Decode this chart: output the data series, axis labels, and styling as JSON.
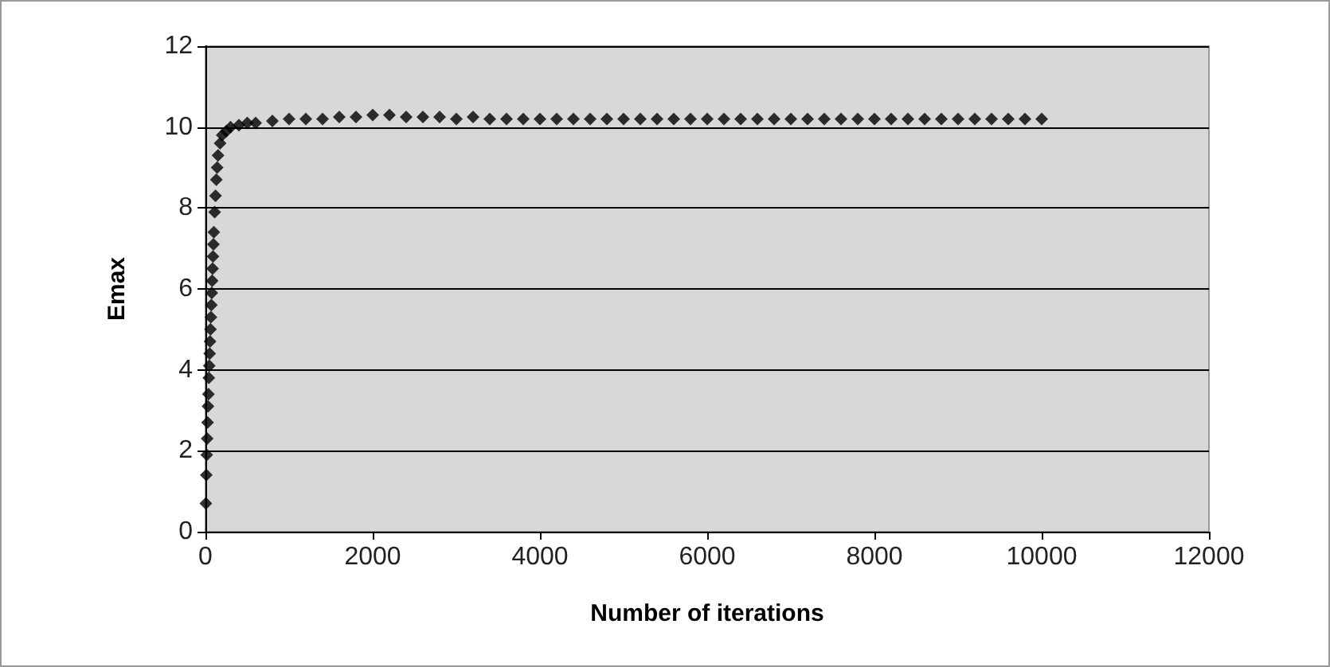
{
  "chart_data": {
    "type": "scatter",
    "xlabel": "Number of iterations",
    "ylabel": "Emax",
    "x": [
      5,
      10,
      15,
      20,
      25,
      30,
      35,
      40,
      45,
      50,
      55,
      60,
      65,
      70,
      75,
      80,
      85,
      90,
      95,
      100,
      110,
      120,
      130,
      140,
      150,
      175,
      200,
      250,
      300,
      400,
      500,
      600,
      800,
      1000,
      1200,
      1400,
      1600,
      1800,
      2000,
      2200,
      2400,
      2600,
      2800,
      3000,
      3200,
      3400,
      3600,
      3800,
      4000,
      4200,
      4400,
      4600,
      4800,
      5000,
      5200,
      5400,
      5600,
      5800,
      6000,
      6200,
      6400,
      6600,
      6800,
      7000,
      7200,
      7400,
      7600,
      7800,
      8000,
      8200,
      8400,
      8600,
      8800,
      9000,
      9200,
      9400,
      9600,
      9800,
      10000
    ],
    "series": [
      {
        "color": "#000000",
        "values": [
          0.7,
          1.4,
          1.9,
          2.3,
          2.7,
          3.1,
          3.4,
          3.8,
          4.1,
          4.4,
          4.7,
          5.0,
          5.3,
          5.6,
          5.9,
          6.2,
          6.5,
          6.8,
          7.1,
          7.4,
          7.9,
          8.3,
          8.7,
          9.0,
          9.3,
          9.6,
          9.8,
          9.9,
          10.0,
          10.05,
          10.1,
          10.1,
          10.15,
          10.2,
          10.2,
          10.2,
          10.25,
          10.25,
          10.3,
          10.3,
          10.25,
          10.25,
          10.25,
          10.2,
          10.25,
          10.2,
          10.2,
          10.2,
          10.2,
          10.2,
          10.2,
          10.2,
          10.2,
          10.2,
          10.2,
          10.2,
          10.2,
          10.2,
          10.2,
          10.2,
          10.2,
          10.2,
          10.2,
          10.2,
          10.2,
          10.2,
          10.2,
          10.2,
          10.2,
          10.2,
          10.2,
          10.2,
          10.2,
          10.2,
          10.2,
          10.2,
          10.2,
          10.2,
          10.2
        ]
      }
    ],
    "xlim": [
      0,
      12000
    ],
    "xticks": [
      0,
      2000,
      4000,
      6000,
      8000,
      10000,
      12000
    ],
    "ylim": [
      0,
      12
    ],
    "yticks": [
      0,
      2,
      4,
      6,
      8,
      10,
      12
    ],
    "grid": "y",
    "marker": "diamond"
  }
}
